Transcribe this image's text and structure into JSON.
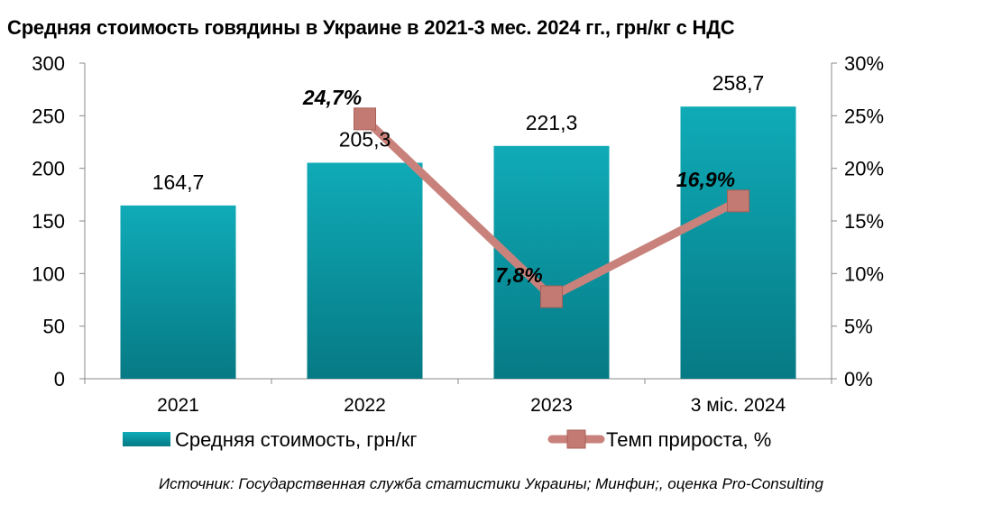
{
  "chart_data": {
    "type": "bar",
    "title": "Средняя стоимость говядины в Украине в 2021-3 мес. 2024 гг., грн/кг с НДС",
    "categories": [
      "2021",
      "2022",
      "2023",
      "3 міс. 2024"
    ],
    "series": [
      {
        "name": "Средняя стоимость, грн/кг",
        "type": "bar",
        "axis": "left",
        "values": [
          164.7,
          205.3,
          221.3,
          258.7
        ],
        "labels": [
          "164,7",
          "205,3",
          "221,3",
          "258,7"
        ],
        "color": "#0d9aa6"
      },
      {
        "name": "Темп прироста, %",
        "type": "line",
        "axis": "right",
        "values": [
          null,
          24.7,
          7.8,
          16.9
        ],
        "labels": [
          "",
          "24,7%",
          "7,8%",
          "16,9%"
        ],
        "color": "#c9827b",
        "marker_color": "#c27a72"
      }
    ],
    "y_left": {
      "ylim": [
        0,
        300
      ],
      "ticks": [
        "0",
        "50",
        "100",
        "150",
        "200",
        "250",
        "300"
      ]
    },
    "y_right": {
      "ylim": [
        0,
        30
      ],
      "ticks": [
        "0%",
        "5%",
        "10%",
        "15%",
        "20%",
        "25%",
        "30%"
      ]
    },
    "grid": false,
    "legend_position": "bottom"
  },
  "source_note": "Источник: Государственная служба статистики Украины; Минфин;, оценка Pro-Consulting"
}
